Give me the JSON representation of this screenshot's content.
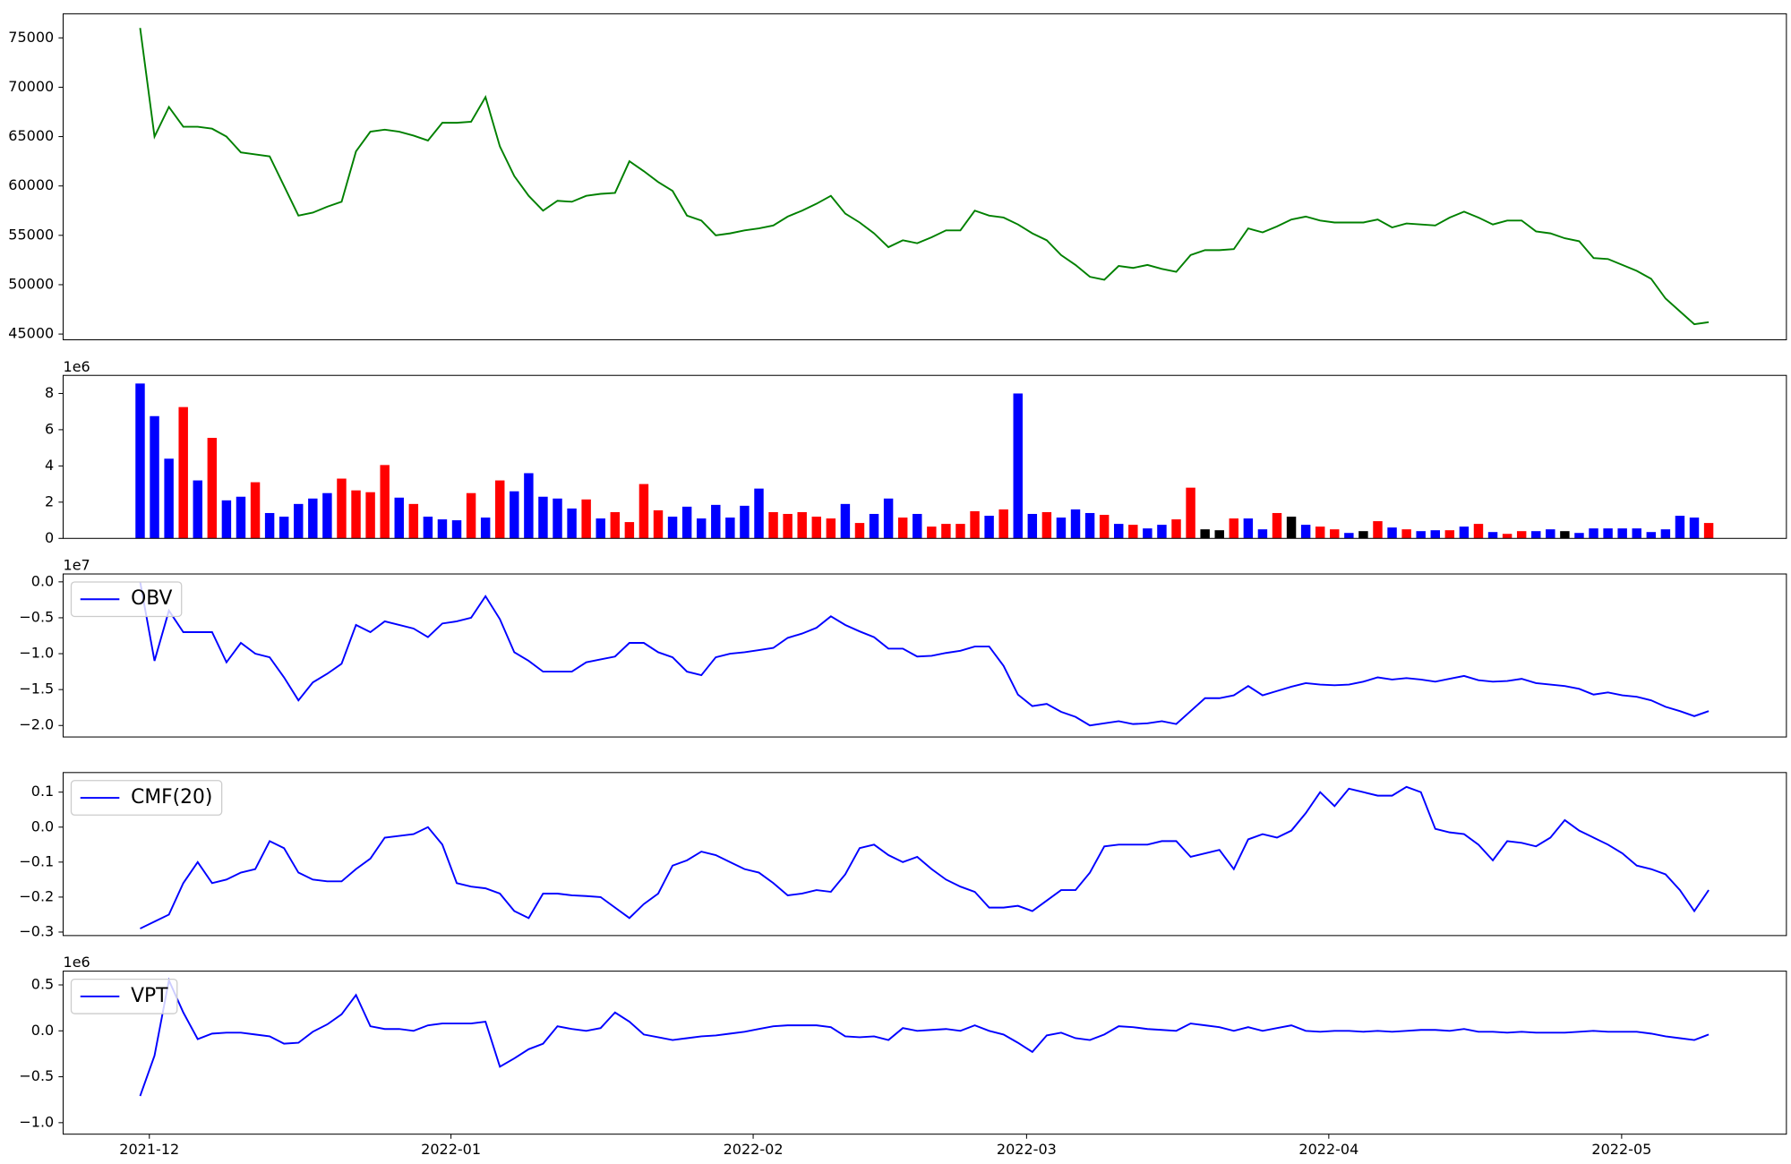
{
  "chart_data": [
    {
      "type": "line",
      "color": "#008000",
      "values": [
        76000,
        65000,
        68000,
        66000,
        66000,
        65800,
        65000,
        63400,
        63200,
        63000,
        60000,
        57000,
        57300,
        57900,
        58400,
        63500,
        65500,
        65700,
        65500,
        65100,
        64600,
        66400,
        66400,
        66500,
        69000,
        64000,
        61000,
        59000,
        57500,
        58500,
        58400,
        59000,
        59200,
        59300,
        62500,
        61500,
        60400,
        59500,
        57000,
        56500,
        55000,
        55200,
        55500,
        55700,
        56000,
        56900,
        57500,
        58200,
        59000,
        57200,
        56300,
        55200,
        53800,
        54500,
        54200,
        54800,
        55500,
        55500,
        57500,
        57000,
        56800,
        56100,
        55200,
        54500,
        53000,
        52000,
        50800,
        50500,
        51900,
        51700,
        52000,
        51600,
        51300,
        53000,
        53500,
        53500,
        53600,
        55700,
        55300,
        55900,
        56600,
        56900,
        56500,
        56300,
        56300,
        56300,
        56600,
        55800,
        56200,
        56100,
        56000,
        56800,
        57400,
        56800,
        56100,
        56500,
        56500,
        55400,
        55200,
        54700,
        54400,
        52700,
        52600,
        52000,
        51400,
        50600,
        48600,
        47300,
        46000,
        46200
      ],
      "xlim": [
        -5.35,
        114.4
      ],
      "ylim": [
        44420,
        77440
      ],
      "yticks": [
        45000,
        50000,
        55000,
        60000,
        65000,
        70000,
        75000
      ]
    },
    {
      "type": "bar",
      "y_offset_label": "1e6",
      "values": [
        8.55,
        6.75,
        4.4,
        7.25,
        3.2,
        5.55,
        2.1,
        2.3,
        3.1,
        1.4,
        1.2,
        1.9,
        2.2,
        2.5,
        3.3,
        2.65,
        2.55,
        4.05,
        2.25,
        1.9,
        1.2,
        1.05,
        1.0,
        2.5,
        1.15,
        3.2,
        2.6,
        3.6,
        2.3,
        2.2,
        1.65,
        2.15,
        1.1,
        1.45,
        0.9,
        3.0,
        1.55,
        1.2,
        1.75,
        1.1,
        1.85,
        1.15,
        1.8,
        2.75,
        1.45,
        1.35,
        1.45,
        1.2,
        1.1,
        1.9,
        0.85,
        1.35,
        2.2,
        1.15,
        1.35,
        0.65,
        0.8,
        0.8,
        1.5,
        1.25,
        1.6,
        8.0,
        1.35,
        1.45,
        1.15,
        1.6,
        1.4,
        1.3,
        0.8,
        0.75,
        0.55,
        0.75,
        1.05,
        2.8,
        0.5,
        0.45,
        1.1,
        1.1,
        0.5,
        1.4,
        1.2,
        0.75,
        0.65,
        0.5,
        0.3,
        0.4,
        0.95,
        0.6,
        0.5,
        0.4,
        0.45,
        0.45,
        0.65,
        0.8,
        0.35,
        0.25,
        0.4,
        0.4,
        0.5,
        0.4,
        0.3,
        0.55,
        0.55,
        0.55,
        0.55,
        0.35,
        0.5,
        1.25,
        1.15,
        0.85
      ],
      "colors": [
        "#0000ff",
        "#0000ff",
        "#0000ff",
        "#ff0000",
        "#0000ff",
        "#ff0000",
        "#0000ff",
        "#0000ff",
        "#ff0000",
        "#0000ff",
        "#0000ff",
        "#0000ff",
        "#0000ff",
        "#0000ff",
        "#ff0000",
        "#ff0000",
        "#ff0000",
        "#ff0000",
        "#0000ff",
        "#ff0000",
        "#0000ff",
        "#0000ff",
        "#0000ff",
        "#ff0000",
        "#0000ff",
        "#ff0000",
        "#0000ff",
        "#0000ff",
        "#0000ff",
        "#0000ff",
        "#0000ff",
        "#ff0000",
        "#0000ff",
        "#ff0000",
        "#ff0000",
        "#ff0000",
        "#ff0000",
        "#0000ff",
        "#0000ff",
        "#0000ff",
        "#0000ff",
        "#0000ff",
        "#0000ff",
        "#0000ff",
        "#ff0000",
        "#ff0000",
        "#ff0000",
        "#ff0000",
        "#ff0000",
        "#0000ff",
        "#ff0000",
        "#0000ff",
        "#0000ff",
        "#ff0000",
        "#0000ff",
        "#ff0000",
        "#ff0000",
        "#ff0000",
        "#ff0000",
        "#0000ff",
        "#ff0000",
        "#0000ff",
        "#0000ff",
        "#ff0000",
        "#0000ff",
        "#0000ff",
        "#0000ff",
        "#ff0000",
        "#0000ff",
        "#ff0000",
        "#0000ff",
        "#0000ff",
        "#ff0000",
        "#ff0000",
        "#000000",
        "#000000",
        "#ff0000",
        "#0000ff",
        "#0000ff",
        "#ff0000",
        "#000000",
        "#0000ff",
        "#ff0000",
        "#ff0000",
        "#0000ff",
        "#000000",
        "#ff0000",
        "#0000ff",
        "#ff0000",
        "#0000ff",
        "#0000ff",
        "#ff0000",
        "#0000ff",
        "#ff0000",
        "#0000ff",
        "#ff0000",
        "#ff0000",
        "#0000ff",
        "#0000ff",
        "#000000",
        "#0000ff",
        "#0000ff",
        "#0000ff",
        "#0000ff",
        "#0000ff",
        "#0000ff",
        "#0000ff",
        "#0000ff",
        "#0000ff",
        "#ff0000"
      ],
      "xlim": [
        -5.35,
        114.4
      ],
      "ylim": [
        0,
        9.0
      ],
      "yticks": [
        0,
        2,
        4,
        6,
        8
      ]
    },
    {
      "type": "line",
      "y_offset_label": "1e7",
      "legend": "upper left",
      "series": [
        {
          "name": "OBV",
          "color": "#0000ff",
          "values": [
            0.0,
            -1.1,
            -0.4,
            -0.7,
            -0.7,
            -0.7,
            -1.12,
            -0.85,
            -1.0,
            -1.05,
            -1.33,
            -1.65,
            -1.4,
            -1.28,
            -1.14,
            -0.6,
            -0.7,
            -0.55,
            -0.6,
            -0.65,
            -0.77,
            -0.58,
            -0.55,
            -0.5,
            -0.2,
            -0.52,
            -0.98,
            -1.1,
            -1.25,
            -1.25,
            -1.25,
            -1.12,
            -1.08,
            -1.04,
            -0.85,
            -0.85,
            -0.98,
            -1.05,
            -1.25,
            -1.3,
            -1.05,
            -1.0,
            -0.98,
            -0.95,
            -0.92,
            -0.78,
            -0.72,
            -0.64,
            -0.48,
            -0.6,
            -0.69,
            -0.77,
            -0.93,
            -0.93,
            -1.04,
            -1.03,
            -0.99,
            -0.96,
            -0.9,
            -0.9,
            -1.17,
            -1.57,
            -1.73,
            -1.7,
            -1.81,
            -1.88,
            -2.0,
            -1.97,
            -1.94,
            -1.98,
            -1.97,
            -1.94,
            -1.98,
            -1.8,
            -1.62,
            -1.62,
            -1.58,
            -1.45,
            -1.58,
            -1.52,
            -1.46,
            -1.41,
            -1.43,
            -1.44,
            -1.43,
            -1.39,
            -1.33,
            -1.36,
            -1.34,
            -1.36,
            -1.39,
            -1.35,
            -1.31,
            -1.37,
            -1.39,
            -1.38,
            -1.35,
            -1.41,
            -1.43,
            -1.45,
            -1.49,
            -1.57,
            -1.54,
            -1.58,
            -1.6,
            -1.65,
            -1.74,
            -1.8,
            -1.87,
            -1.8
          ]
        }
      ],
      "xlim": [
        -5.35,
        114.4
      ],
      "ylim": [
        -2.16,
        0.11
      ],
      "yticks": [
        {
          "value": -2.0,
          "label": "−2.0"
        },
        {
          "value": -1.5,
          "label": "−1.5"
        },
        {
          "value": -1.0,
          "label": "−1.0"
        },
        {
          "value": -0.5,
          "label": "−0.5"
        },
        {
          "value": 0,
          "label": "0.0"
        }
      ]
    },
    {
      "type": "line",
      "legend": "upper left",
      "series": [
        {
          "name": "CMF(20)",
          "color": "#0000ff",
          "values": [
            -0.29,
            -0.27,
            -0.25,
            -0.16,
            -0.1,
            -0.16,
            -0.15,
            -0.13,
            -0.12,
            -0.04,
            -0.06,
            -0.13,
            -0.15,
            -0.155,
            -0.155,
            -0.12,
            -0.09,
            -0.03,
            -0.025,
            -0.02,
            0.0,
            -0.05,
            -0.16,
            -0.17,
            -0.175,
            -0.19,
            -0.24,
            -0.26,
            -0.19,
            -0.19,
            -0.195,
            -0.197,
            -0.2,
            -0.23,
            -0.26,
            -0.22,
            -0.19,
            -0.11,
            -0.095,
            -0.07,
            -0.08,
            -0.1,
            -0.12,
            -0.13,
            -0.16,
            -0.195,
            -0.19,
            -0.18,
            -0.185,
            -0.135,
            -0.06,
            -0.05,
            -0.08,
            -0.1,
            -0.085,
            -0.12,
            -0.15,
            -0.17,
            -0.185,
            -0.23,
            -0.23,
            -0.225,
            -0.24,
            -0.21,
            -0.18,
            -0.18,
            -0.13,
            -0.055,
            -0.05,
            -0.05,
            -0.05,
            -0.04,
            -0.04,
            -0.085,
            -0.075,
            -0.065,
            -0.12,
            -0.035,
            -0.02,
            -0.03,
            -0.01,
            0.04,
            0.1,
            0.06,
            0.11,
            0.1,
            0.09,
            0.09,
            0.115,
            0.1,
            -0.005,
            -0.015,
            -0.02,
            -0.05,
            -0.095,
            -0.04,
            -0.045,
            -0.055,
            -0.03,
            0.02,
            -0.01,
            -0.03,
            -0.05,
            -0.075,
            -0.11,
            -0.12,
            -0.135,
            -0.18,
            -0.24,
            -0.18
          ]
        }
      ],
      "xlim": [
        -5.35,
        114.4
      ],
      "ylim": [
        -0.31,
        0.156
      ],
      "yticks": [
        {
          "value": -0.3,
          "label": "−0.3"
        },
        {
          "value": -0.2,
          "label": "−0.2"
        },
        {
          "value": -0.1,
          "label": "−0.1"
        },
        {
          "value": 0,
          "label": "0.0"
        },
        0.1
      ]
    },
    {
      "type": "line",
      "y_offset_label": "1e6",
      "legend": "upper left",
      "series": [
        {
          "name": "VPT",
          "color": "#0000ff",
          "values": [
            -0.71,
            -0.27,
            0.55,
            0.2,
            -0.09,
            -0.03,
            -0.02,
            -0.02,
            -0.04,
            -0.06,
            -0.14,
            -0.13,
            -0.01,
            0.07,
            0.18,
            0.39,
            0.05,
            0.02,
            0.02,
            0.0,
            0.06,
            0.08,
            0.08,
            0.08,
            0.1,
            -0.39,
            -0.3,
            -0.2,
            -0.14,
            0.05,
            0.02,
            0.0,
            0.03,
            0.2,
            0.1,
            -0.04,
            -0.07,
            -0.1,
            -0.08,
            -0.06,
            -0.05,
            -0.03,
            -0.01,
            0.02,
            0.05,
            0.06,
            0.06,
            0.06,
            0.04,
            -0.06,
            -0.07,
            -0.06,
            -0.1,
            0.03,
            0.0,
            0.01,
            0.02,
            0.0,
            0.06,
            0.0,
            -0.04,
            -0.13,
            -0.23,
            -0.05,
            -0.02,
            -0.08,
            -0.1,
            -0.04,
            0.05,
            0.04,
            0.02,
            0.01,
            0.0,
            0.08,
            0.06,
            0.04,
            0.0,
            0.04,
            0.0,
            0.03,
            0.06,
            0.0,
            -0.01,
            0.0,
            0.0,
            -0.01,
            0.0,
            -0.01,
            0.0,
            0.01,
            0.01,
            0.0,
            0.02,
            -0.01,
            -0.01,
            -0.02,
            -0.01,
            -0.02,
            -0.02,
            -0.02,
            -0.01,
            0.0,
            -0.01,
            -0.01,
            -0.01,
            -0.03,
            -0.06,
            -0.08,
            -0.1,
            -0.04
          ]
        }
      ],
      "xlim": [
        -5.35,
        114.4
      ],
      "ylim": [
        -1.125,
        0.65
      ],
      "yticks": [
        {
          "value": -1.0,
          "label": "−1.0"
        },
        {
          "value": -0.5,
          "label": "−0.5"
        },
        {
          "value": 0,
          "label": "0.0"
        },
        0.5
      ],
      "xticks": [
        {
          "value": 0.64,
          "label": "2021-12"
        },
        {
          "value": 21.6,
          "label": "2022-01"
        },
        {
          "value": 42.6,
          "label": "2022-02"
        },
        {
          "value": 61.6,
          "label": "2022-03"
        },
        {
          "value": 82.6,
          "label": "2022-04"
        },
        {
          "value": 102.95,
          "label": "2022-05"
        }
      ]
    }
  ]
}
